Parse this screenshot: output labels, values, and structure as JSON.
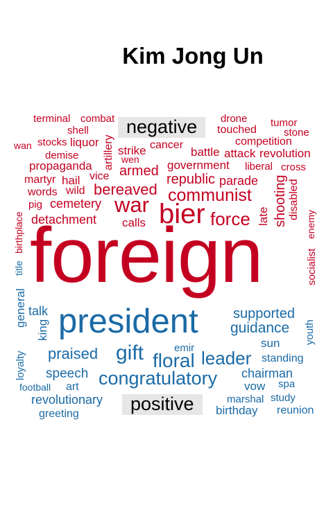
{
  "title": "Kim Jong Un",
  "labels": {
    "negative": "negative",
    "positive": "positive"
  },
  "negative_words": [
    "terminal",
    "combat",
    "shell",
    "stocks",
    "liquor",
    "wan",
    "demise",
    "artillery",
    "strike",
    "cancer",
    "wen",
    "battle",
    "attack",
    "revolution",
    "drone",
    "touched",
    "tumor",
    "stone",
    "competition",
    "propaganda",
    "vice",
    "armed",
    "government",
    "liberal",
    "cross",
    "martyr",
    "hail",
    "words",
    "wild",
    "bereaved",
    "republic",
    "parade",
    "communist",
    "pig",
    "cemetery",
    "war",
    "bier",
    "force",
    "late",
    "shooting",
    "disabled",
    "enemy",
    "detachment",
    "calls",
    "birthplace",
    "socialist",
    "foreign"
  ],
  "positive_words": [
    "title",
    "general",
    "talk",
    "king",
    "president",
    "supported",
    "guidance",
    "youth",
    "gift",
    "emir",
    "sun",
    "praised",
    "floral",
    "leader",
    "standing",
    "loyalty",
    "speech",
    "congratulatory",
    "chairman",
    "football",
    "art",
    "vow",
    "spa",
    "revolutionary",
    "marshal",
    "study",
    "greeting",
    "birthday",
    "reunion"
  ]
}
